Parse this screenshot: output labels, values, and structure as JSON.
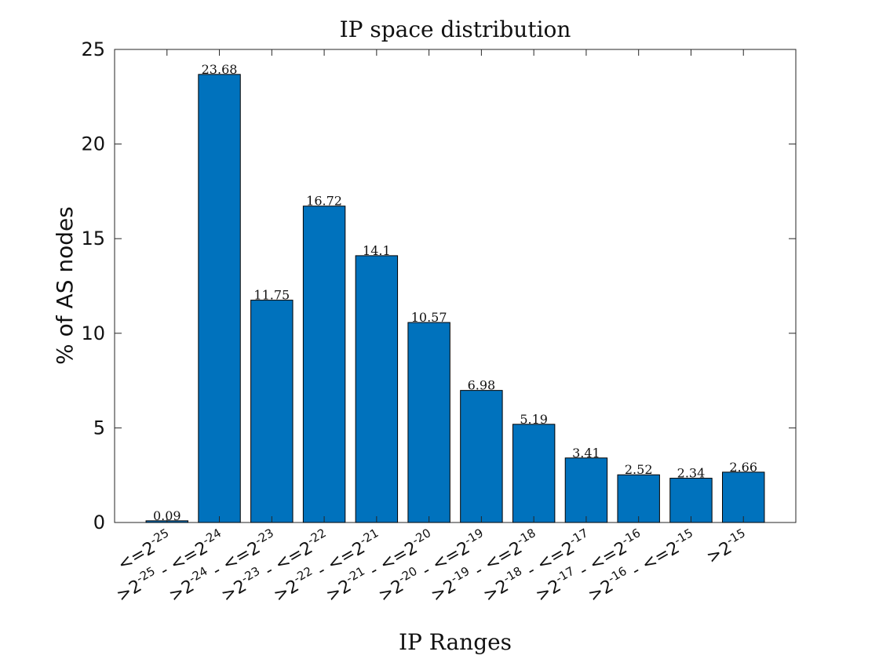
{
  "chart_data": {
    "type": "bar",
    "title": "IP space distribution",
    "xlabel": "IP Ranges",
    "ylabel": "% of AS nodes",
    "ylim": [
      0,
      25
    ],
    "yticks": [
      "0",
      "5",
      "10",
      "15",
      "20",
      "25"
    ],
    "grid": false,
    "bar_color": "#0072BD",
    "categories": [
      "<=2^-25",
      ">2^-25 - <=2^-24",
      ">2^-24 - <=2^-23",
      ">2^-23 - <=2^-22",
      ">2^-22 - <=2^-21",
      ">2^-21 - <=2^-20",
      ">2^-20 - <=2^-19",
      ">2^-19 - <=2^-18",
      ">2^-18 - <=2^-17",
      ">2^-17 - <=2^-16",
      ">2^-16 - <=2^-15",
      ">2^-15"
    ],
    "values": [
      0.09,
      23.68,
      11.75,
      16.72,
      14.1,
      10.57,
      6.98,
      5.19,
      3.41,
      2.52,
      2.34,
      2.66
    ],
    "data_labels": [
      "0.09",
      "23.68",
      "11.75",
      "16.72",
      "14.1",
      "10.57",
      "6.98",
      "5.19",
      "3.41",
      "2.52",
      "2.34",
      "2.66"
    ]
  }
}
